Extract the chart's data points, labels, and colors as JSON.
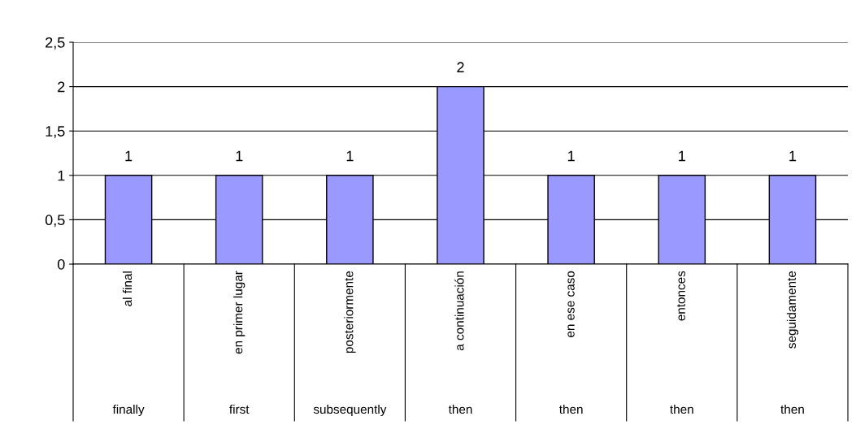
{
  "chart_data": {
    "type": "bar",
    "categories": [
      "al final",
      "en primer lugar",
      "posteriormente",
      "a continuación",
      "en ese caso",
      "entonces",
      "seguidamente"
    ],
    "values": [
      1,
      1,
      1,
      2,
      1,
      1,
      1
    ],
    "color": "#9999ff",
    "ylim": [
      0,
      2.5
    ],
    "yticks": [
      0,
      {
        "value": 0.5,
        "label": "0,5"
      },
      1,
      {
        "value": 1.5,
        "label": "1,5"
      },
      2,
      {
        "value": 2.5,
        "label": "2,5"
      }
    ],
    "grid": "y",
    "data_labels": true,
    "annotations": [
      "finally",
      "first",
      "subsequently",
      "then",
      "then",
      "then",
      "then"
    ]
  }
}
